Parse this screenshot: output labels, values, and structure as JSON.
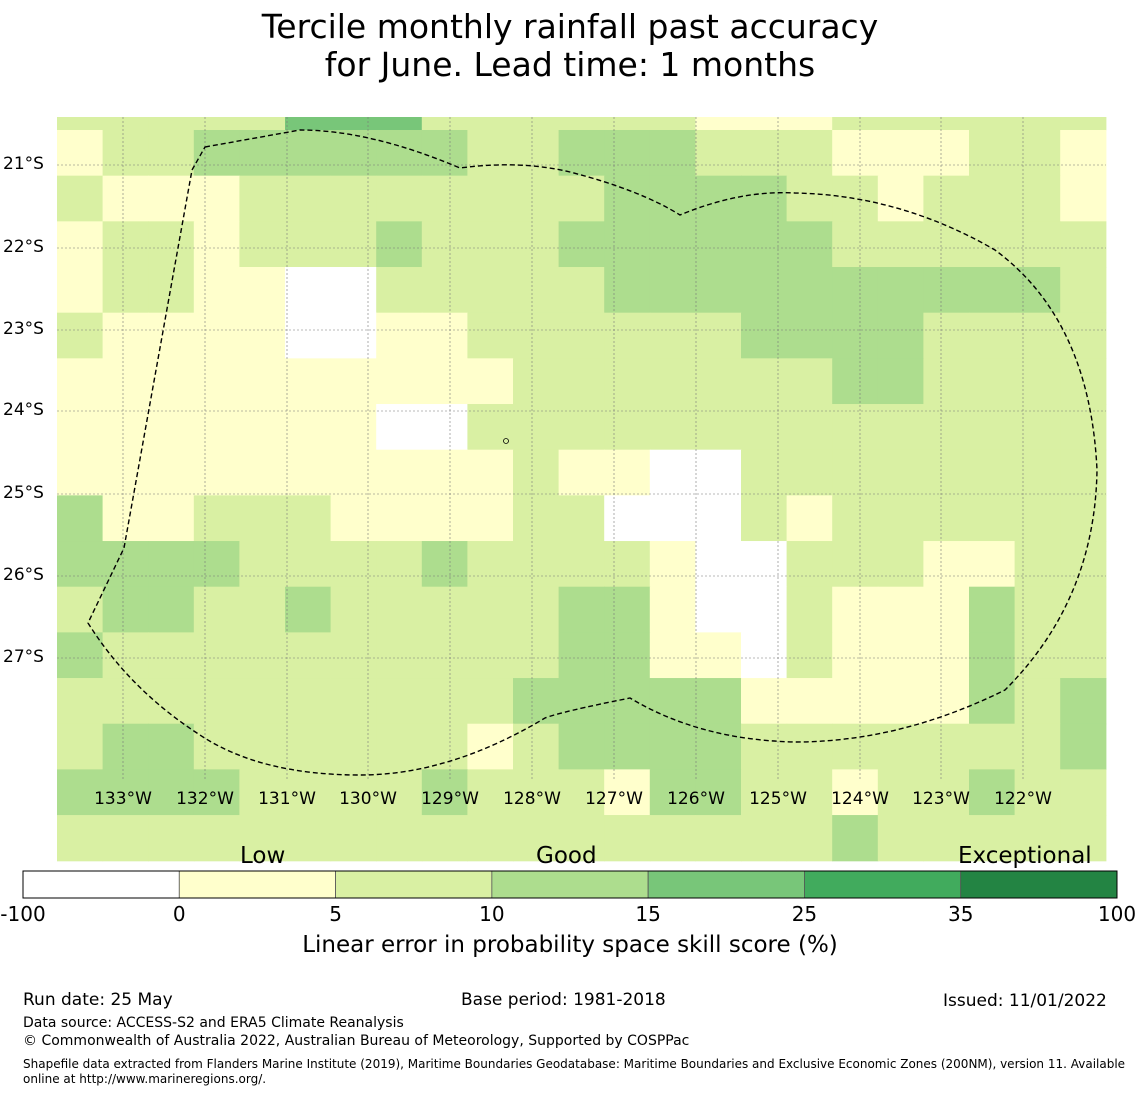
{
  "title": {
    "line1": "Tercile monthly rainfall past accuracy",
    "line2": "for June. Lead time: 1 months"
  },
  "map": {
    "lat_labels": [
      "21°S",
      "22°S",
      "23°S",
      "24°S",
      "25°S",
      "26°S",
      "27°S"
    ],
    "lon_labels": [
      "133°W",
      "132°W",
      "131°W",
      "130°W",
      "129°W",
      "128°W",
      "127°W",
      "126°W",
      "125°W",
      "124°W",
      "123°W",
      "122°W"
    ],
    "colors": {
      "c0": "#ffffff",
      "c1": "#ffffcc",
      "c2": "#d9f0a3",
      "c3": "#addd8e",
      "c4": "#78c679",
      "c5": "#41ab5d",
      "c6": "#238443"
    },
    "cell_grid": [
      "22222444222222111222222",
      "12233333322333222111221",
      "21112222222233332212221",
      "12212223222333333222222",
      "12211002222233333333332",
      "21111001122222233332222",
      "11111111112222222332222",
      "11111110022222222222222",
      "11111111112110022222222",
      "31122211112200021222222",
      "33332222322221002221122",
      "23322322222331002111322",
      "32222222222331102111322",
      "22222222223333311111323",
      "23322222212333322222223",
      "33332222322213322122322",
      "22222222222222222322222"
    ],
    "grid_lines_visible": true
  },
  "colorbar": {
    "category_labels": [
      "Low",
      "Good",
      "Exceptional"
    ],
    "ticks": [
      "-100",
      "0",
      "5",
      "10",
      "15",
      "25",
      "35",
      "100"
    ],
    "title": "Linear error in probability space skill score (%)"
  },
  "footer": {
    "run_date": "Run date: 25 May",
    "base_period": "Base period: 1981-2018",
    "issued": "Issued: 11/01/2022",
    "data_source": "Data source: ACCESS-S2 and ERA5 Climate Reanalysis",
    "copyright": "© Commonwealth of Australia 2022, Australian Bureau of Meteorology, Supported by COSPPac",
    "shapefile_note": "Shapefile data extracted from Flanders Marine Institute (2019), Maritime Boundaries Geodatabase: Maritime Boundaries and Exclusive Economic Zones (200NM), version 11. Available online at http://www.marineregions.org/."
  }
}
